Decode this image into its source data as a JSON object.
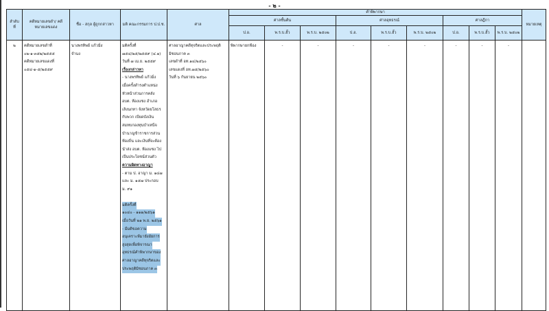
{
  "page_number": "- ๒ -",
  "header": {
    "no": "ลำดับ ที่",
    "case": "คดีหมายเลขดำ/ คดีหมายเลขแดง",
    "name": "ชื่อ - สกุล ผู้ถูกกล่าวหา",
    "resolution": "มติ คณะกรรมการ ป.ป.ช.",
    "court": "ศาล",
    "judgment": "คำพิพากษา",
    "first_court": "ศาลชั้นต้น",
    "appeal_court": "ศาลอุทธรณ์",
    "supreme_court": "ศาลฎีกา",
    "sub": [
      "ป.อ.",
      "พ.ร.บ.ฮั้ว",
      "พ.ร.บ. ๒๕๐๒"
    ],
    "remark": "หมายเหตุ"
  },
  "row": {
    "no": "๒",
    "case_lines": [
      "คดีหมายเลขดำที่",
      "๐๒-๑-๓๕๒/๒๕๕๕",
      "คดีหมายเลขแดงที่",
      "๐๕๔-๑-๕/๒๕๕๙"
    ],
    "name_lines": [
      "นางพรทิพย์  แก้วมิ่ง",
      "จำนง"
    ],
    "resolution_lines": [
      {
        "t": "มติครั้งที่",
        "s": ""
      },
      {
        "t": "๗๕๔/๒๕/๒๕๕๙ (๔.๑)",
        "s": ""
      },
      {
        "t": "วันที่ ๗ เม.ย. ๒๕๕๙",
        "s": ""
      },
      {
        "t": "เรื่องกล่าวหา",
        "s": "b"
      },
      {
        "t": " - นางพรทิพย์  แก้วมิ่ง",
        "s": ""
      },
      {
        "t": "เมื่อครั้งดำรงตำแหน่ง",
        "s": ""
      },
      {
        "t": "หัวหน้าส่วนการคลัง",
        "s": ""
      },
      {
        "t": "อบต. ห้องแซง อำเภอ",
        "s": ""
      },
      {
        "t": "เลิงนกทา จังหวัดยโสธร",
        "s": ""
      },
      {
        "t": "กับพวก เบียดบังเงิน",
        "s": ""
      },
      {
        "t": "สมทบกองทุนบำเหน็จ",
        "s": ""
      },
      {
        "t": "บำนาญข้าราชการส่วน",
        "s": ""
      },
      {
        "t": "ท้องถิ่น และเงินที่จะต้อง",
        "s": ""
      },
      {
        "t": "นำส่ง อบต. ห้องแซง ไป",
        "s": ""
      },
      {
        "t": "เป็นประโยชน์ส่วนตัว",
        "s": ""
      },
      {
        "t": "ความผิดทางอาญา",
        "s": "b"
      },
      {
        "t": " - ตาม ป. อาญา ม. ๑๔๗",
        "s": ""
      },
      {
        "t": " และ ม. ๑๕๗ ประกอบ",
        "s": ""
      },
      {
        "t": "ม. ๙๑",
        "s": ""
      },
      {
        "t": "",
        "s": ""
      },
      {
        "t": "มติครั้งที่",
        "s": "hl"
      },
      {
        "t": "๑๐๔๐ - ๑๑๑/๒๕๖๑",
        "s": "hl"
      },
      {
        "t": "เมื่อวันที่ ๒๑ พ.ย. ๒๕๖๑",
        "s": "hl"
      },
      {
        "t": " - มีมติขอความ",
        "s": "hl"
      },
      {
        "t": "อนุเคราะห์มายังอัยการ",
        "s": "hl"
      },
      {
        "t": "สูงสุดเพื่อพิจารณา",
        "s": "hl"
      },
      {
        "t": "อุทธรณ์คำพิพากษาของ",
        "s": "hl"
      },
      {
        "t": "ศาลอาญาคดีทุจริตและ",
        "s": "hl"
      },
      {
        "t": "ประพฤติมิชอบภาค ๓",
        "s": "hl"
      }
    ],
    "court_lines": [
      "ศาลอาญาคดีทุจริตและประพฤติ",
      "มิชอบภาค ๓",
      "เลขดำที่ อท.๑๔/๒๕๖๐",
      "เลขแดงที่ อท.๗๕/๒๕๖๐",
      "วันที่ ๖ กันยายน ๒๕๖๐"
    ],
    "first_po": "พิพากษายกฟ้อง",
    "dash": "-",
    "remark": ""
  },
  "colors": {
    "header_bg": "#cfe8fa",
    "highlight": "#9cc6e6"
  }
}
